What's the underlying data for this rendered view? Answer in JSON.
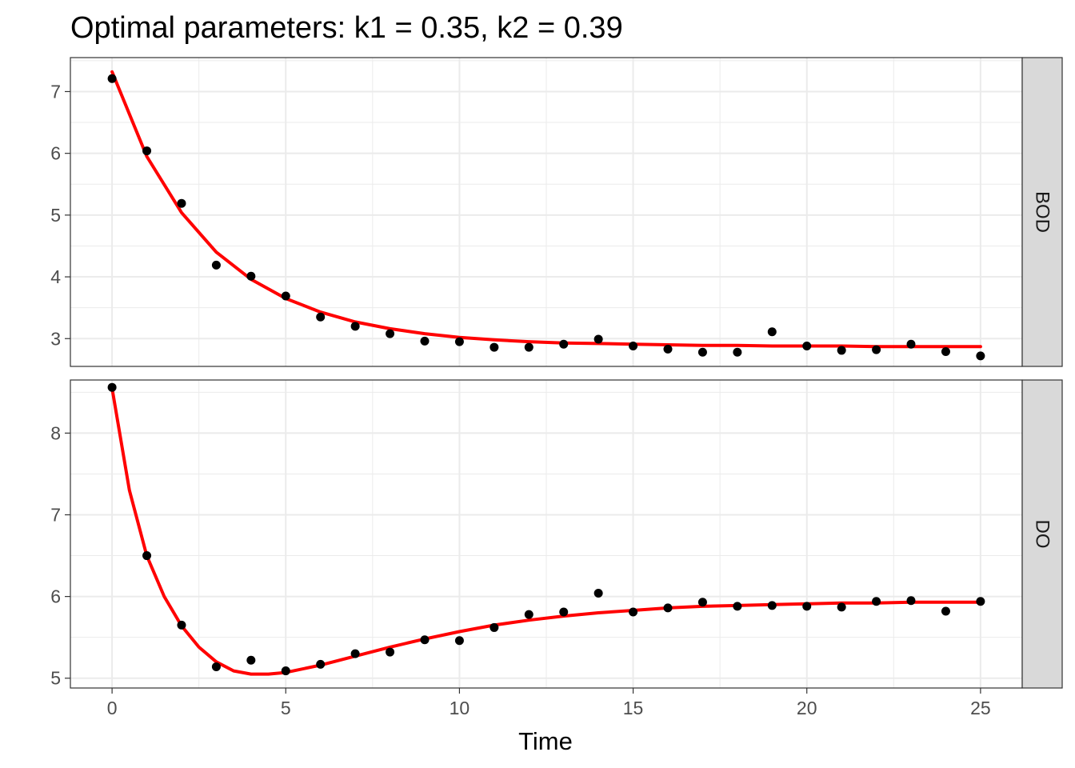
{
  "chart_data": {
    "type": "scatter",
    "title": "Optimal parameters: k1 = 0.35, k2 = 0.39",
    "xlabel": "Time",
    "ylabel": "",
    "xlim": [
      -1.2,
      26.2
    ],
    "x_ticks": [
      "0",
      "5",
      "10",
      "15",
      "20",
      "25"
    ],
    "grid": true,
    "legend": "none",
    "colors": {
      "points": "#000000",
      "fit": "#ff0000",
      "strip": "#d9d9d9",
      "grid": "#ebebeb"
    },
    "panels": [
      {
        "strip": "BOD",
        "ylim": [
          2.55,
          7.55
        ],
        "y_ticks": [
          "3",
          "4",
          "5",
          "6",
          "7"
        ],
        "series": [
          {
            "kind": "points",
            "x": [
              0,
              1,
              2,
              3,
              4,
              5,
              6,
              7,
              8,
              9,
              10,
              11,
              12,
              13,
              14,
              15,
              16,
              17,
              18,
              19,
              20,
              21,
              22,
              23,
              24,
              25
            ],
            "y": [
              7.21,
              6.04,
              5.19,
              4.19,
              4.01,
              3.69,
              3.35,
              3.2,
              3.08,
              2.96,
              2.95,
              2.86,
              2.86,
              2.91,
              2.99,
              2.88,
              2.83,
              2.78,
              2.78,
              3.11,
              2.88,
              2.81,
              2.82,
              2.91,
              2.79,
              2.72
            ]
          },
          {
            "kind": "fit",
            "x": [
              0,
              1,
              2,
              3,
              4,
              5,
              6,
              7,
              8,
              9,
              10,
              11,
              12,
              13,
              14,
              15,
              16,
              17,
              18,
              19,
              20,
              21,
              22,
              23,
              24,
              25
            ],
            "y": [
              7.32,
              5.95,
              5.04,
              4.4,
              3.96,
              3.65,
              3.43,
              3.27,
              3.16,
              3.08,
              3.02,
              2.98,
              2.95,
              2.93,
              2.92,
              2.91,
              2.9,
              2.89,
              2.89,
              2.88,
              2.88,
              2.88,
              2.87,
              2.87,
              2.87,
              2.87
            ]
          }
        ]
      },
      {
        "strip": "DO",
        "ylim": [
          4.88,
          8.65
        ],
        "y_ticks": [
          "5",
          "6",
          "7",
          "8"
        ],
        "series": [
          {
            "kind": "points",
            "x": [
              0,
              1,
              2,
              3,
              4,
              5,
              6,
              7,
              8,
              9,
              10,
              11,
              12,
              13,
              14,
              15,
              16,
              17,
              18,
              19,
              20,
              21,
              22,
              23,
              24,
              25
            ],
            "y": [
              8.56,
              6.5,
              5.65,
              5.14,
              5.22,
              5.09,
              5.17,
              5.3,
              5.32,
              5.47,
              5.46,
              5.62,
              5.78,
              5.81,
              6.04,
              5.81,
              5.86,
              5.93,
              5.88,
              5.89,
              5.88,
              5.87,
              5.94,
              5.95,
              5.82,
              5.94
            ]
          },
          {
            "kind": "fit",
            "x": [
              0,
              0.5,
              1,
              1.5,
              2,
              2.5,
              3,
              3.5,
              4,
              4.5,
              5,
              6,
              7,
              8,
              9,
              10,
              11,
              12,
              13,
              14,
              15,
              16,
              17,
              18,
              19,
              20,
              21,
              22,
              23,
              24,
              25
            ],
            "y": [
              8.55,
              7.3,
              6.5,
              6.0,
              5.64,
              5.38,
              5.2,
              5.09,
              5.05,
              5.05,
              5.07,
              5.16,
              5.27,
              5.38,
              5.48,
              5.57,
              5.65,
              5.71,
              5.76,
              5.8,
              5.83,
              5.86,
              5.88,
              5.89,
              5.9,
              5.91,
              5.92,
              5.92,
              5.93,
              5.93,
              5.93
            ]
          }
        ]
      }
    ]
  }
}
